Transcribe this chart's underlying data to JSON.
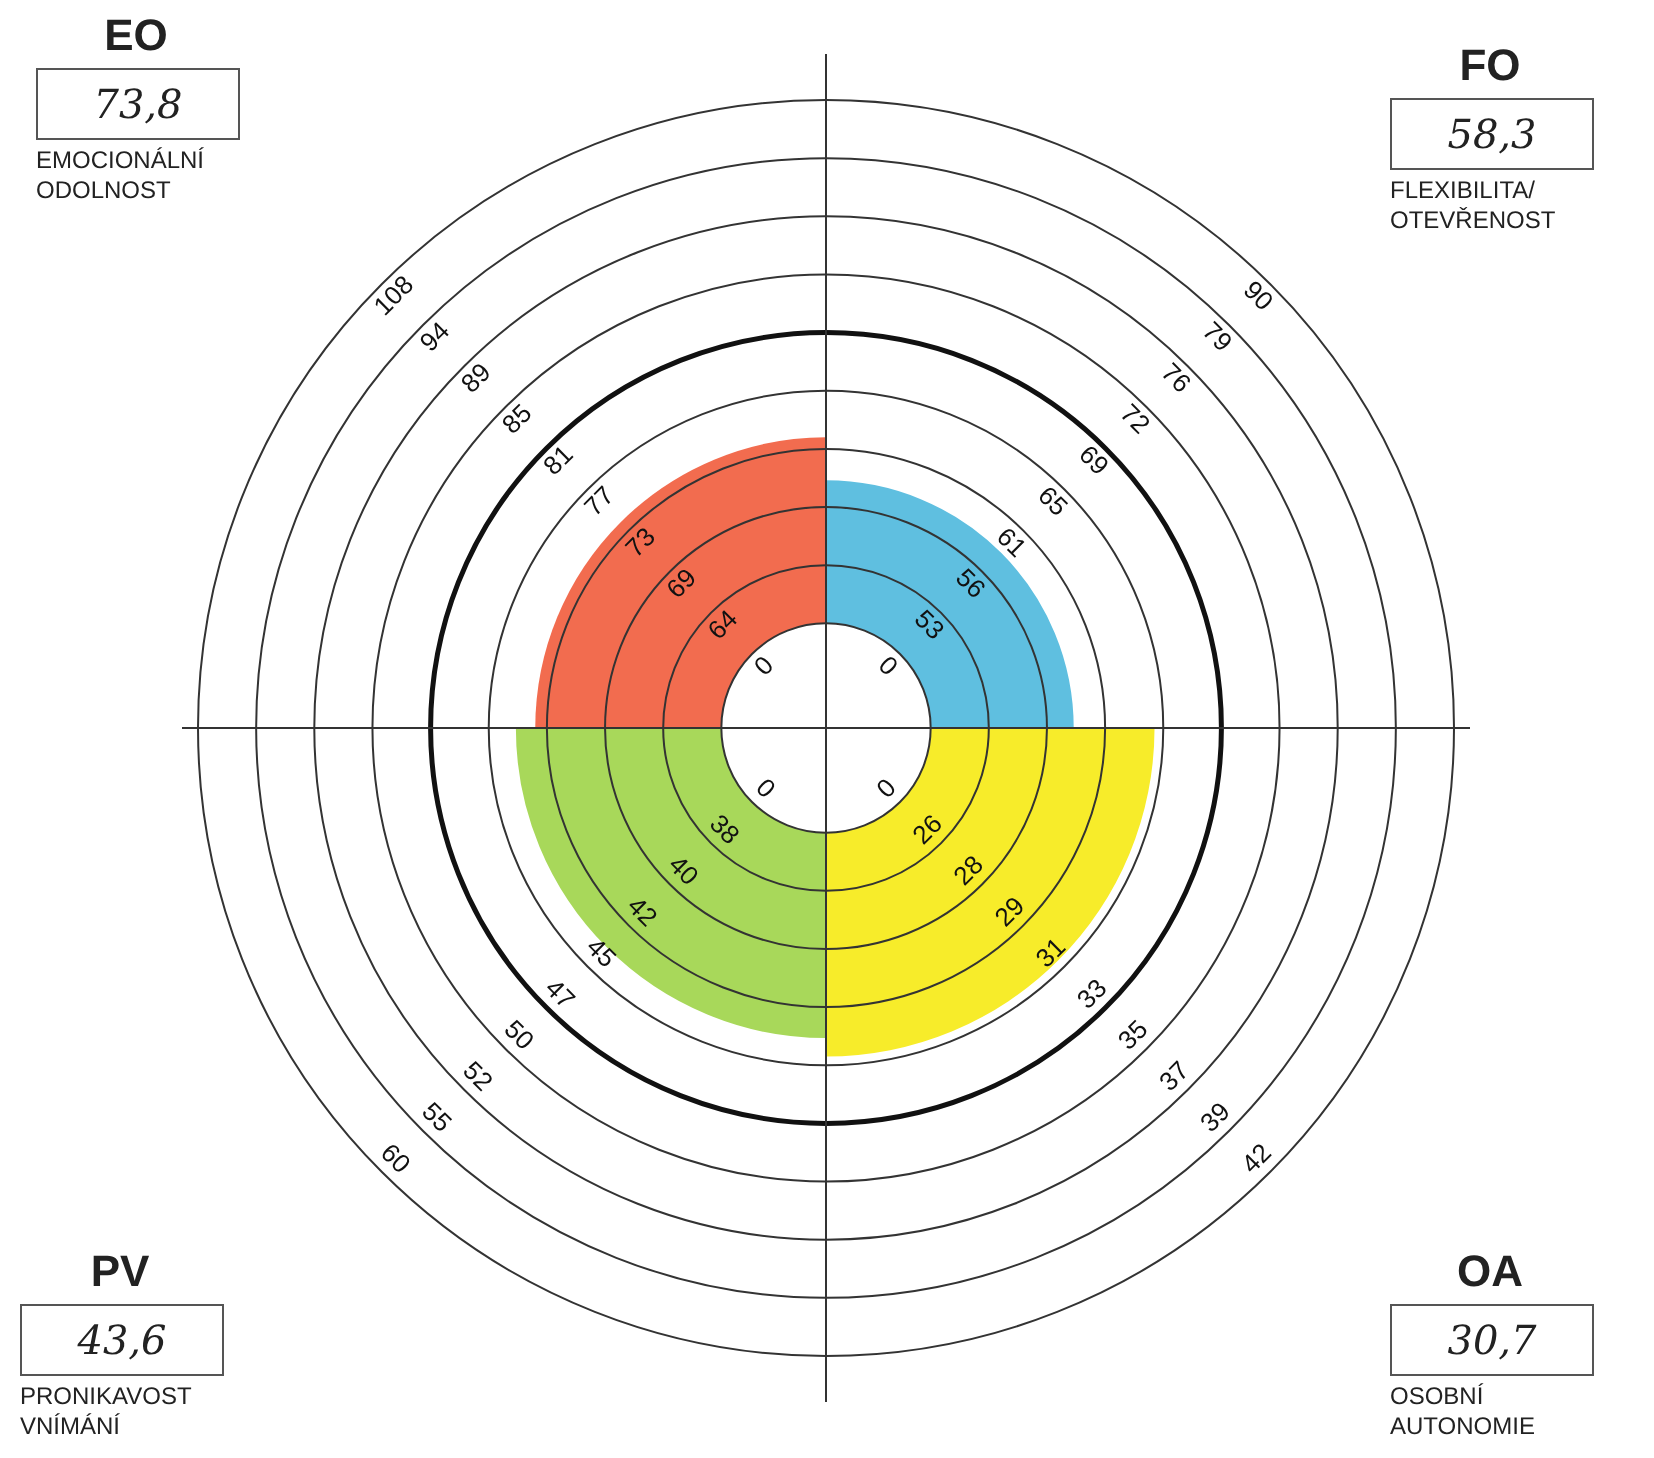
{
  "chart_data": [
    {
      "type": "other",
      "title": "EO",
      "subtitle": "EMOCIONÁLNÍ ODOLNOST",
      "values": [
        73.8
      ],
      "value_labels": [
        "73,8"
      ],
      "colors": [
        "#f26c4f"
      ],
      "annotations": [
        "0",
        "64",
        "69",
        "73",
        "77",
        "81",
        "85",
        "89",
        "94",
        "108"
      ]
    },
    {
      "type": "other",
      "title": "FO",
      "subtitle": "FLEXIBILITA/ OTEVŘENOST",
      "values": [
        58.3
      ],
      "value_labels": [
        "58,3"
      ],
      "colors": [
        "#5fbfe0"
      ],
      "annotations": [
        "0",
        "53",
        "56",
        "61",
        "65",
        "69",
        "72",
        "76",
        "79",
        "90"
      ]
    },
    {
      "type": "other",
      "title": "PV",
      "subtitle": "PRONIKAVOST VNÍMÁNÍ",
      "values": [
        43.6
      ],
      "value_labels": [
        "43,6"
      ],
      "colors": [
        "#a8d85a"
      ],
      "annotations": [
        "0",
        "38",
        "40",
        "42",
        "45",
        "47",
        "50",
        "52",
        "55",
        "60"
      ]
    },
    {
      "type": "other",
      "title": "OA",
      "subtitle": "OSOBNÍ AUTONOMIE",
      "values": [
        30.7
      ],
      "value_labels": [
        "30,7"
      ],
      "colors": [
        "#f7ec2a"
      ],
      "annotations": [
        "0",
        "26",
        "28",
        "29",
        "31",
        "33",
        "35",
        "37",
        "39",
        "42"
      ]
    }
  ]
}
